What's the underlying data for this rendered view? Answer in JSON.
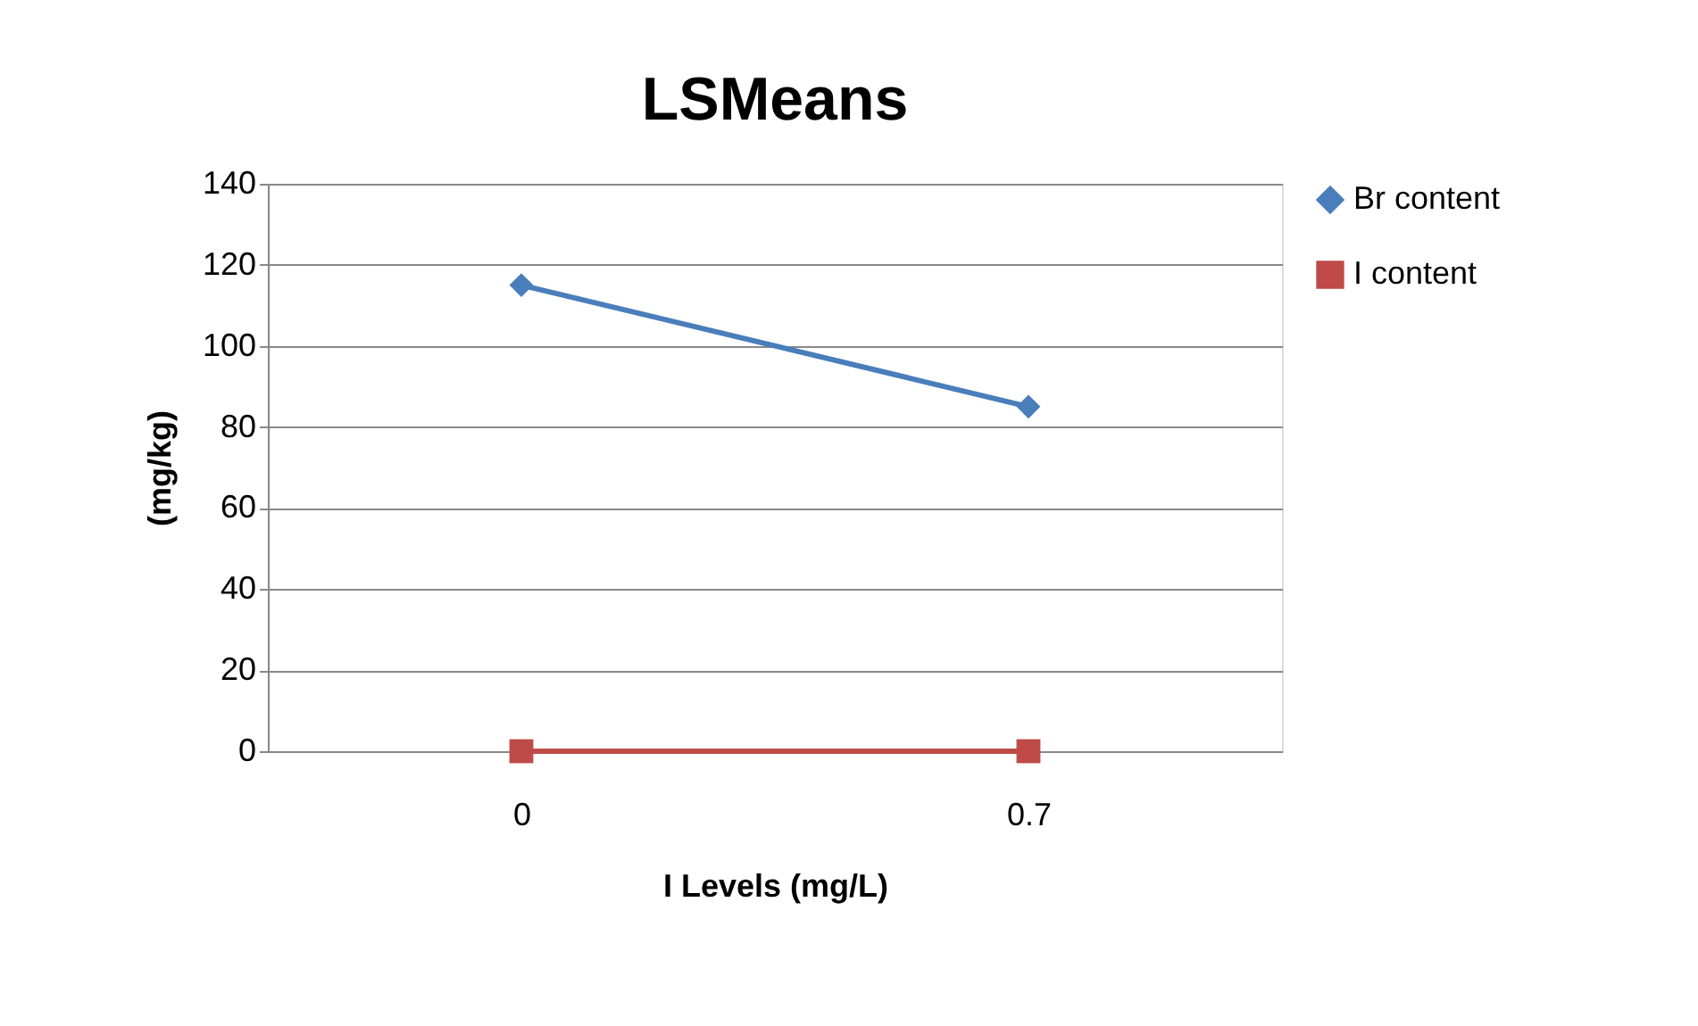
{
  "chart_data": {
    "type": "line",
    "title": "LSMeans",
    "xlabel": "I Levels (mg/L)",
    "ylabel": "(mg/kg)",
    "categories": [
      "0",
      "0.7"
    ],
    "series": [
      {
        "name": "Br content",
        "color": "#4a7ebb",
        "marker": "diamond",
        "values": [
          115,
          85
        ]
      },
      {
        "name": "I content",
        "color": "#be4b48",
        "marker": "square",
        "values": [
          0,
          0
        ]
      }
    ],
    "ylim": [
      0,
      140
    ],
    "yticks": [
      0,
      20,
      40,
      60,
      80,
      100,
      120,
      140
    ],
    "grid": "y",
    "legend": "right",
    "line_style": "solid"
  }
}
